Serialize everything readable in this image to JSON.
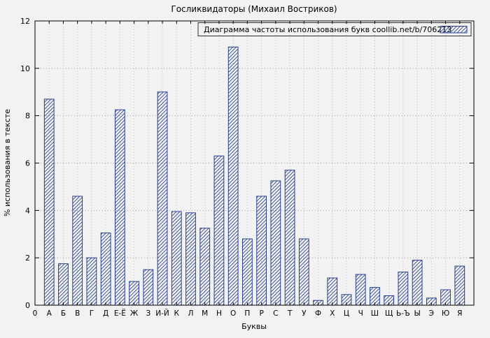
{
  "figure": {
    "title": "Госликвидаторы (Михаил Востриков)"
  },
  "chart_data": {
    "type": "bar",
    "title": "Госликвидаторы (Михаил Востриков)",
    "legend": "Диаграмма частоты использования букв coollib.net/b/706213",
    "xlabel": "Буквы",
    "ylabel": "% использования в тексте",
    "origin_label": "0",
    "ylim": [
      0,
      12
    ],
    "ytick_step": 2,
    "ytick_labels": [
      "0",
      "2",
      "4",
      "6",
      "8",
      "10",
      "12"
    ],
    "grid": true,
    "legend_position": "top-right",
    "bar_fill_style": "diagonal-hatch",
    "bar_color": "#27408b",
    "background": "#f2f2f2",
    "categories": [
      "А",
      "Б",
      "В",
      "Г",
      "Д",
      "Е-Ё",
      "Ж",
      "З",
      "И-Й",
      "К",
      "Л",
      "М",
      "Н",
      "О",
      "П",
      "Р",
      "С",
      "Т",
      "У",
      "Ф",
      "Х",
      "Ц",
      "Ч",
      "Ш",
      "Щ",
      "Ь-Ъ",
      "Ы",
      "Э",
      "Ю",
      "Я"
    ],
    "values": [
      8.7,
      1.75,
      4.6,
      2.0,
      3.05,
      8.25,
      1.0,
      1.5,
      9.0,
      3.95,
      3.9,
      3.25,
      6.3,
      10.9,
      2.8,
      4.6,
      5.25,
      5.7,
      2.8,
      0.2,
      1.15,
      0.45,
      1.3,
      0.75,
      0.4,
      1.4,
      1.9,
      0.3,
      0.65,
      1.65
    ]
  }
}
